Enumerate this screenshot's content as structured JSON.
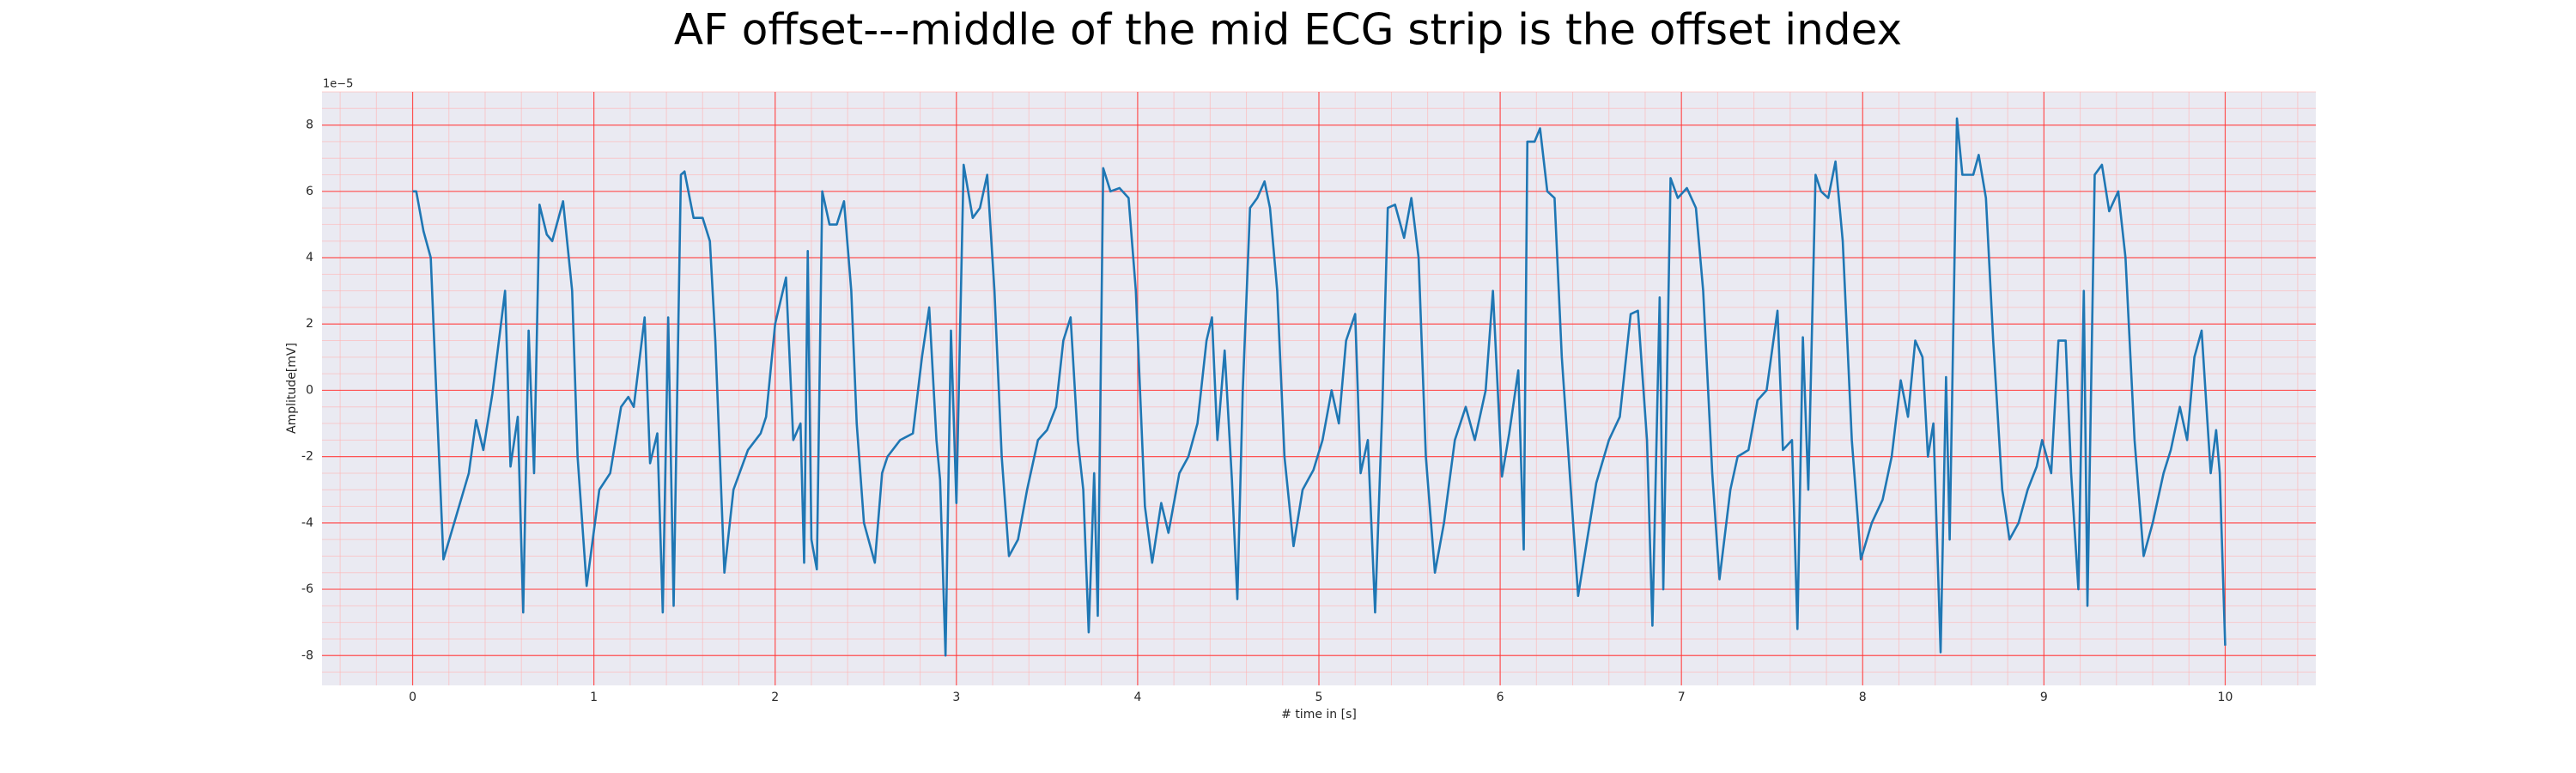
{
  "chart_data": {
    "type": "line",
    "title": "AF offset---middle of the mid ECG strip is the offset index",
    "x_label": "# time in [s]",
    "y_label": "Amplitude[mV]",
    "y_offset_label": "1e−5",
    "color": "#1f77b4",
    "xlim": [
      -0.5,
      10.5
    ],
    "ylim": [
      -8.9,
      9.0
    ],
    "xticks": [
      0,
      1,
      2,
      3,
      4,
      5,
      6,
      7,
      8,
      9,
      10
    ],
    "yticks": [
      -8,
      -6,
      -4,
      -2,
      0,
      2,
      4,
      6,
      8
    ],
    "grid": true,
    "minor_grid": {
      "x": 0.2,
      "y": 0.5
    },
    "x": [
      0,
      0.02,
      0.06,
      0.1,
      0.13,
      0.17,
      0.24,
      0.31,
      0.35,
      0.39,
      0.44,
      0.51,
      0.54,
      0.58,
      0.61,
      0.64,
      0.67,
      0.7,
      0.74,
      0.77,
      0.83,
      0.88,
      0.91,
      0.96,
      1.03,
      1.09,
      1.15,
      1.19,
      1.22,
      1.28,
      1.31,
      1.35,
      1.38,
      1.41,
      1.44,
      1.48,
      1.5,
      1.55,
      1.6,
      1.64,
      1.67,
      1.72,
      1.77,
      1.85,
      1.92,
      1.95,
      2.0,
      2.06,
      2.1,
      2.14,
      2.16,
      2.18,
      2.2,
      2.23,
      2.26,
      2.3,
      2.34,
      2.38,
      2.42,
      2.45,
      2.49,
      2.55,
      2.59,
      2.62,
      2.69,
      2.76,
      2.81,
      2.85,
      2.89,
      2.91,
      2.94,
      2.97,
      3.0,
      3.04,
      3.09,
      3.13,
      3.17,
      3.21,
      3.25,
      3.29,
      3.34,
      3.39,
      3.45,
      3.5,
      3.55,
      3.59,
      3.63,
      3.67,
      3.7,
      3.73,
      3.76,
      3.78,
      3.81,
      3.85,
      3.9,
      3.95,
      3.99,
      4.04,
      4.08,
      4.13,
      4.17,
      4.23,
      4.28,
      4.33,
      4.38,
      4.41,
      4.44,
      4.48,
      4.52,
      4.55,
      4.58,
      4.62,
      4.66,
      4.7,
      4.73,
      4.77,
      4.81,
      4.86,
      4.91,
      4.97,
      5.02,
      5.07,
      5.11,
      5.15,
      5.2,
      5.23,
      5.27,
      5.31,
      5.35,
      5.38,
      5.42,
      5.47,
      5.51,
      5.55,
      5.59,
      5.64,
      5.69,
      5.75,
      5.81,
      5.86,
      5.92,
      5.96,
      6.01,
      6.05,
      6.1,
      6.13,
      6.15,
      6.19,
      6.22,
      6.26,
      6.3,
      6.34,
      6.39,
      6.43,
      6.48,
      6.53,
      6.6,
      6.66,
      6.72,
      6.76,
      6.81,
      6.84,
      6.88,
      6.9,
      6.94,
      6.98,
      7.03,
      7.08,
      7.12,
      7.17,
      7.21,
      7.27,
      7.31,
      7.37,
      7.42,
      7.47,
      7.53,
      7.56,
      7.61,
      7.64,
      7.67,
      7.7,
      7.74,
      7.77,
      7.81,
      7.85,
      7.89,
      7.94,
      7.99,
      8.05,
      8.11,
      8.16,
      8.21,
      8.25,
      8.29,
      8.33,
      8.36,
      8.39,
      8.43,
      8.46,
      8.48,
      8.52,
      8.55,
      8.61,
      8.64,
      8.68,
      8.72,
      8.77,
      8.81,
      8.86,
      8.91,
      8.96,
      8.99,
      9.04,
      9.08,
      9.12,
      9.15,
      9.19,
      9.22,
      9.24,
      9.28,
      9.32,
      9.36,
      9.41,
      9.45,
      9.5,
      9.55,
      9.6,
      9.66,
      9.7,
      9.75,
      9.79,
      9.83,
      9.87,
      9.92,
      9.95,
      9.97,
      10.0
    ],
    "values": [
      6.0,
      6.0,
      4.8,
      4.0,
      0.0,
      -5.1,
      -3.8,
      -2.5,
      -0.9,
      -1.8,
      -0.1,
      3.0,
      -2.3,
      -0.8,
      -6.7,
      1.8,
      -2.5,
      5.6,
      4.7,
      4.5,
      5.7,
      3.0,
      -2.0,
      -5.9,
      -3.0,
      -2.5,
      -0.5,
      -0.2,
      -0.5,
      2.2,
      -2.2,
      -1.3,
      -6.7,
      2.2,
      -6.5,
      6.5,
      6.6,
      5.2,
      5.2,
      4.5,
      1.5,
      -5.5,
      -3.0,
      -1.8,
      -1.3,
      -0.8,
      2.0,
      3.4,
      -1.5,
      -1.0,
      -5.2,
      4.2,
      -4.5,
      -5.4,
      6.0,
      5.0,
      5.0,
      5.7,
      3.0,
      -1.0,
      -4.0,
      -5.2,
      -2.5,
      -2.0,
      -1.5,
      -1.3,
      1.0,
      2.5,
      -1.5,
      -2.7,
      -8.0,
      1.8,
      -3.4,
      6.8,
      5.2,
      5.5,
      6.5,
      3.0,
      -2.0,
      -5.0,
      -4.5,
      -3.0,
      -1.5,
      -1.2,
      -0.5,
      1.5,
      2.2,
      -1.5,
      -3.0,
      -7.3,
      -2.5,
      -6.8,
      6.7,
      6.0,
      6.1,
      5.8,
      3.0,
      -3.5,
      -5.2,
      -3.4,
      -4.3,
      -2.5,
      -2.0,
      -1.0,
      1.5,
      2.2,
      -1.5,
      1.2,
      -2.7,
      -6.3,
      0.0,
      5.5,
      5.8,
      6.3,
      5.5,
      3.0,
      -2.0,
      -4.7,
      -3.0,
      -2.4,
      -1.5,
      0.0,
      -1.0,
      1.5,
      2.3,
      -2.5,
      -1.5,
      -6.7,
      -0.5,
      5.5,
      5.6,
      4.6,
      5.8,
      4.0,
      -2.0,
      -5.5,
      -4.0,
      -1.5,
      -0.5,
      -1.5,
      0.0,
      3.0,
      -2.6,
      -1.3,
      0.6,
      -4.8,
      7.5,
      7.5,
      7.9,
      6.0,
      5.8,
      1.0,
      -3.0,
      -6.2,
      -4.5,
      -2.8,
      -1.5,
      -0.8,
      2.3,
      2.4,
      -1.5,
      -7.1,
      2.8,
      -6.0,
      6.4,
      5.8,
      6.1,
      5.5,
      3.0,
      -2.5,
      -5.7,
      -3.0,
      -2.0,
      -1.8,
      -0.3,
      0.0,
      2.4,
      -1.8,
      -1.5,
      -7.2,
      1.6,
      -3.0,
      6.5,
      6.0,
      5.8,
      6.9,
      4.5,
      -1.5,
      -5.1,
      -4.0,
      -3.3,
      -2.0,
      0.3,
      -0.8,
      1.5,
      1.0,
      -2.0,
      -1.0,
      -7.9,
      0.4,
      -4.5,
      8.2,
      6.5,
      6.5,
      7.1,
      5.8,
      1.5,
      -3.0,
      -4.5,
      -4.0,
      -3.0,
      -2.3,
      -1.5,
      -2.5,
      1.5,
      1.5,
      -2.5,
      -6.0,
      3.0,
      -6.5,
      6.5,
      6.8,
      5.4,
      6.0,
      4.0,
      -1.5,
      -5.0,
      -4.0,
      -2.5,
      -1.8,
      -0.5,
      -1.5,
      1.0,
      1.8,
      -2.5,
      -1.2,
      -2.5,
      -7.7
    ]
  }
}
